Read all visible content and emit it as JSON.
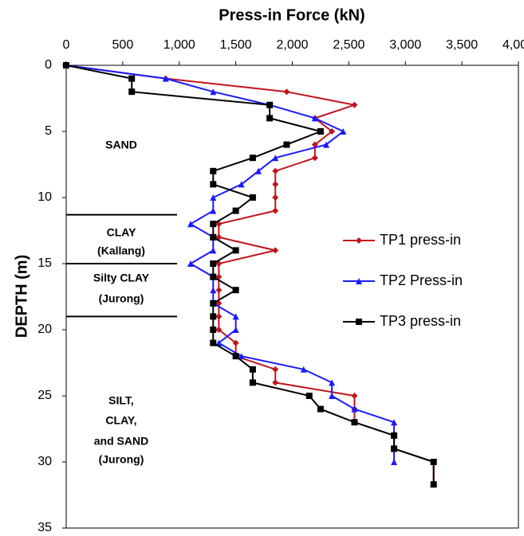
{
  "chart_data": {
    "type": "line",
    "title": "Press-in Force (kN)",
    "y_label": "DEPTH (m)",
    "xlim": [
      0,
      4000
    ],
    "xticks": [
      0,
      500,
      {
        "value": 1000,
        "label": "1,000"
      },
      {
        "value": 1500,
        "label": "1,500"
      },
      {
        "value": 2000,
        "label": "2,000"
      },
      {
        "value": 2500,
        "label": "2,500"
      },
      {
        "value": 3000,
        "label": "3,000"
      },
      {
        "value": 3500,
        "label": "3,500"
      },
      {
        "value": 4000,
        "label": "4,000"
      }
    ],
    "ylim": [
      0,
      35
    ],
    "yticks": [
      0,
      5,
      10,
      15,
      20,
      25,
      30,
      35
    ],
    "y_reversed": true,
    "x_axis_top": true,
    "legend": "right",
    "series": [
      {
        "name": "TP1 press-in",
        "color": "#c0141c",
        "marker": "diamond",
        "x": [
          0,
          880,
          1950,
          2550,
          2200,
          2350,
          2200,
          2200,
          1850,
          1850,
          1850,
          1850,
          1350,
          1350,
          1850,
          1350,
          1350,
          1350,
          1350,
          1350,
          1350,
          1500,
          1500,
          1850,
          1850,
          2550,
          2550,
          2550,
          2900,
          2900,
          3250,
          3250
        ],
        "y": [
          0,
          1,
          2,
          3,
          4,
          5,
          6,
          7,
          8,
          9,
          10,
          11,
          12,
          13,
          14,
          15,
          16,
          17,
          18,
          19,
          20,
          21,
          22,
          23,
          24,
          25,
          26,
          27,
          28,
          29,
          30,
          31.7
        ]
      },
      {
        "name": "TP2 Press-in",
        "color": "#1a1aff",
        "marker": "triangle",
        "x": [
          0,
          880,
          1300,
          1800,
          2200,
          2450,
          2300,
          1850,
          1700,
          1550,
          1300,
          1300,
          1100,
          1300,
          1300,
          1100,
          1300,
          1300,
          1300,
          1500,
          1500,
          1350,
          1550,
          2100,
          2350,
          2350,
          2550,
          2900,
          2900,
          2900,
          2900
        ],
        "y": [
          0,
          1,
          2,
          3,
          4,
          5,
          6,
          7,
          8,
          9,
          10,
          11,
          12,
          13,
          14,
          15,
          16,
          17,
          18,
          19,
          20,
          21,
          22,
          23,
          24,
          25,
          26,
          27,
          28,
          29,
          30
        ]
      },
      {
        "name": "TP3 press-in",
        "color": "#000000",
        "marker": "square",
        "x": [
          0,
          580,
          580,
          1800,
          1800,
          2250,
          1950,
          1650,
          1300,
          1300,
          1650,
          1500,
          1300,
          1300,
          1500,
          1300,
          1300,
          1500,
          1300,
          1300,
          1300,
          1300,
          1500,
          1650,
          1650,
          2150,
          2250,
          2550,
          2900,
          2900,
          3250,
          3250
        ],
        "y": [
          0,
          1,
          2,
          3,
          4,
          5,
          6,
          7,
          8,
          9,
          10,
          11,
          12,
          13,
          14,
          15,
          16,
          17,
          18,
          19,
          20,
          21,
          22,
          23,
          24,
          25,
          26,
          27,
          28,
          29,
          30,
          31.7
        ]
      }
    ],
    "layer_boundaries": [
      11.3,
      15,
      19
    ],
    "layers": [
      [
        "SAND"
      ],
      [
        "CLAY",
        "(Kallang)"
      ],
      [
        "Silty CLAY",
        "(Jurong)"
      ],
      [
        "SILT,",
        "CLAY,",
        "and SAND",
        "(Jurong)"
      ]
    ]
  }
}
